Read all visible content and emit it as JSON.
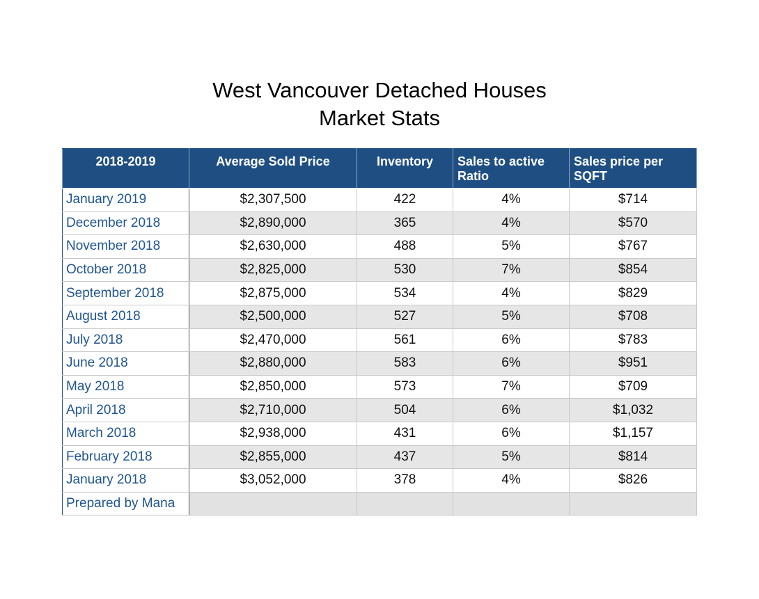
{
  "chart_data": {
    "type": "table",
    "title_lines": [
      "West Vancouver Detached Houses",
      "Market Stats"
    ],
    "columns": [
      "2018-2019",
      "Average Sold Price",
      "Inventory",
      "Sales to active Ratio",
      "Sales price per SQFT"
    ],
    "rows": [
      {
        "month": "January 2019",
        "avg_price": "$2,307,500",
        "inventory": "422",
        "ratio": "4%",
        "price_sqft": "$714"
      },
      {
        "month": "December 2018",
        "avg_price": "$2,890,000",
        "inventory": "365",
        "ratio": "4%",
        "price_sqft": "$570"
      },
      {
        "month": "November 2018",
        "avg_price": "$2,630,000",
        "inventory": "488",
        "ratio": "5%",
        "price_sqft": "$767"
      },
      {
        "month": "October 2018",
        "avg_price": "$2,825,000",
        "inventory": "530",
        "ratio": "7%",
        "price_sqft": "$854"
      },
      {
        "month": "September 2018",
        "avg_price": "$2,875,000",
        "inventory": "534",
        "ratio": "4%",
        "price_sqft": "$829"
      },
      {
        "month": "August 2018",
        "avg_price": "$2,500,000",
        "inventory": "527",
        "ratio": "5%",
        "price_sqft": "$708"
      },
      {
        "month": "July 2018",
        "avg_price": "$2,470,000",
        "inventory": "561",
        "ratio": "6%",
        "price_sqft": "$783"
      },
      {
        "month": "June 2018",
        "avg_price": "$2,880,000",
        "inventory": "583",
        "ratio": "6%",
        "price_sqft": "$951"
      },
      {
        "month": "May 2018",
        "avg_price": "$2,850,000",
        "inventory": "573",
        "ratio": "7%",
        "price_sqft": "$709"
      },
      {
        "month": "April 2018",
        "avg_price": "$2,710,000",
        "inventory": "504",
        "ratio": "6%",
        "price_sqft": "$1,032"
      },
      {
        "month": "March 2018",
        "avg_price": "$2,938,000",
        "inventory": "431",
        "ratio": "6%",
        "price_sqft": "$1,157"
      },
      {
        "month": "February 2018",
        "avg_price": "$2,855,000",
        "inventory": "437",
        "ratio": "5%",
        "price_sqft": "$814"
      },
      {
        "month": "January 2018",
        "avg_price": "$3,052,000",
        "inventory": "378",
        "ratio": "4%",
        "price_sqft": "$826"
      }
    ],
    "footer": "Prepared by Mana"
  },
  "colors": {
    "header_bg": "#1f4f82",
    "month_text": "#1f5590",
    "shade_row": "#e6e6e6"
  }
}
